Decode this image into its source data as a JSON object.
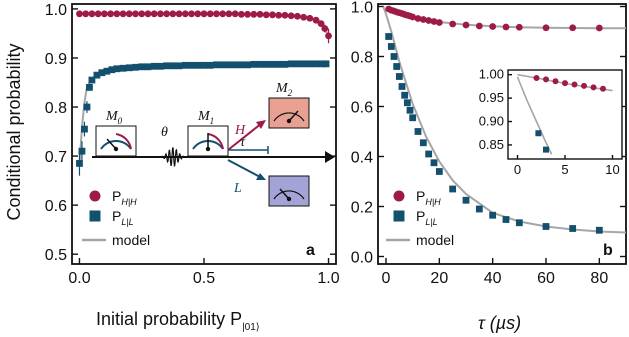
{
  "colors": {
    "red": "#9e1b48",
    "blue": "#13506e",
    "model": "#a6a6a6",
    "axis": "#111111",
    "box_h": "#e7a091",
    "box_l": "#a3a3d8"
  },
  "panel_a": {
    "label": "a",
    "ylabel": "Conditional probability",
    "xlabel_main": "Initial probability P",
    "xlabel_sub": "|01⟩",
    "xticks": [
      "0.0",
      "0.5",
      "1.0"
    ],
    "yticks": [
      "0.5",
      "0.6",
      "0.7",
      "0.8",
      "0.9",
      "1.0"
    ],
    "legend": {
      "red": "P",
      "red_sub": "H|H",
      "blue": "P",
      "blue_sub": "L|L",
      "model": "model"
    },
    "diagram": {
      "m0": "M",
      "m0_sub": "0",
      "m1": "M",
      "m1_sub": "1",
      "m2": "M",
      "m2_sub": "2",
      "theta": "θ",
      "tau": "τ",
      "H": "H",
      "L": "L"
    }
  },
  "panel_b": {
    "label": "b",
    "xlabel": "τ (µs)",
    "xticks": [
      "0",
      "20",
      "40",
      "60",
      "80"
    ],
    "yticks": [
      "0.0",
      "0.2",
      "0.4",
      "0.6",
      "0.8",
      "1.0"
    ],
    "legend": {
      "red": "P",
      "red_sub": "H|H",
      "blue": "P",
      "blue_sub": "L|L",
      "model": "model"
    },
    "inset": {
      "xticks": [
        "0",
        "5",
        "10"
      ],
      "yticks": [
        "1.00",
        "0.95",
        "0.90",
        "0.85"
      ]
    }
  },
  "chart_data": [
    {
      "type": "scatter",
      "panel": "a",
      "xlabel": "Initial probability P|01⟩",
      "ylabel": "Conditional probability",
      "xlim": [
        -0.03,
        1.03
      ],
      "ylim": [
        0.48,
        1.01
      ],
      "series": [
        {
          "name": "P_H|H",
          "color": "#9e1b48",
          "marker": "circle",
          "x": [
            0.0,
            0.025,
            0.05,
            0.075,
            0.1,
            0.125,
            0.15,
            0.175,
            0.2,
            0.225,
            0.25,
            0.275,
            0.3,
            0.325,
            0.35,
            0.375,
            0.4,
            0.425,
            0.45,
            0.475,
            0.5,
            0.525,
            0.55,
            0.575,
            0.6,
            0.625,
            0.65,
            0.675,
            0.7,
            0.725,
            0.75,
            0.775,
            0.8,
            0.825,
            0.85,
            0.875,
            0.9,
            0.925,
            0.95,
            0.97,
            0.985,
            1.0
          ],
          "y": [
            0.99,
            0.99,
            0.99,
            0.99,
            0.99,
            0.99,
            0.99,
            0.99,
            0.99,
            0.99,
            0.99,
            0.99,
            0.99,
            0.99,
            0.99,
            0.99,
            0.99,
            0.99,
            0.99,
            0.99,
            0.99,
            0.99,
            0.99,
            0.99,
            0.99,
            0.99,
            0.989,
            0.989,
            0.989,
            0.989,
            0.988,
            0.988,
            0.987,
            0.987,
            0.986,
            0.985,
            0.983,
            0.981,
            0.977,
            0.97,
            0.96,
            0.945
          ]
        },
        {
          "name": "P_L|L",
          "color": "#13506e",
          "marker": "square",
          "x": [
            0.0,
            0.01,
            0.02,
            0.03,
            0.04,
            0.05,
            0.07,
            0.09,
            0.11,
            0.13,
            0.15,
            0.175,
            0.2,
            0.225,
            0.25,
            0.275,
            0.3,
            0.325,
            0.35,
            0.375,
            0.4,
            0.425,
            0.45,
            0.475,
            0.5,
            0.525,
            0.55,
            0.575,
            0.6,
            0.625,
            0.65,
            0.675,
            0.7,
            0.725,
            0.75,
            0.775,
            0.8,
            0.825,
            0.85,
            0.875,
            0.9,
            0.925,
            0.95,
            0.975,
            0.99
          ],
          "y": [
            0.685,
            0.71,
            0.755,
            0.8,
            0.84,
            0.855,
            0.865,
            0.87,
            0.873,
            0.876,
            0.878,
            0.879,
            0.88,
            0.881,
            0.882,
            0.882,
            0.883,
            0.883,
            0.884,
            0.884,
            0.884,
            0.885,
            0.885,
            0.885,
            0.885,
            0.885,
            0.886,
            0.886,
            0.886,
            0.886,
            0.886,
            0.886,
            0.887,
            0.887,
            0.887,
            0.887,
            0.887,
            0.887,
            0.888,
            0.888,
            0.888,
            0.888,
            0.888,
            0.888,
            0.888
          ]
        }
      ],
      "model": [
        {
          "x": [
            0.0,
            0.2,
            0.4,
            0.6,
            0.8,
            0.9,
            0.95,
            0.98,
            1.0
          ],
          "y": [
            0.99,
            0.99,
            0.99,
            0.99,
            0.988,
            0.985,
            0.978,
            0.965,
            0.945
          ]
        },
        {
          "x": [
            0.0,
            0.005,
            0.01,
            0.02,
            0.03,
            0.05,
            0.08,
            0.12,
            0.2,
            0.4,
            0.6,
            0.8,
            1.0
          ],
          "y": [
            0.68,
            0.72,
            0.76,
            0.81,
            0.84,
            0.858,
            0.868,
            0.874,
            0.879,
            0.884,
            0.886,
            0.887,
            0.888
          ]
        }
      ]
    },
    {
      "type": "scatter",
      "panel": "b",
      "xlabel": "τ (µs)",
      "ylabel": "",
      "xlim": [
        -3,
        90
      ],
      "ylim": [
        -0.03,
        1.01
      ],
      "series": [
        {
          "name": "P_H|H",
          "color": "#9e1b48",
          "marker": "circle",
          "x": [
            1,
            2,
            3,
            4,
            5,
            6,
            7,
            8,
            9,
            10,
            12,
            14,
            16,
            18,
            20,
            25,
            30,
            35,
            40,
            45,
            50,
            60,
            70,
            80
          ],
          "y": [
            0.99,
            0.985,
            0.982,
            0.978,
            0.975,
            0.972,
            0.968,
            0.965,
            0.962,
            0.958,
            0.952,
            0.948,
            0.944,
            0.94,
            0.936,
            0.93,
            0.926,
            0.922,
            0.92,
            0.918,
            0.917,
            0.915,
            0.915,
            0.914
          ]
        },
        {
          "name": "P_L|L",
          "color": "#13506e",
          "marker": "square",
          "x": [
            1,
            2,
            3,
            4,
            5,
            6,
            7,
            8,
            9,
            10,
            12,
            14,
            16,
            18,
            20,
            25,
            30,
            35,
            40,
            45,
            50,
            60,
            70,
            80
          ],
          "y": [
            0.88,
            0.84,
            0.8,
            0.76,
            0.72,
            0.68,
            0.645,
            0.615,
            0.585,
            0.555,
            0.5,
            0.455,
            0.41,
            0.375,
            0.34,
            0.27,
            0.225,
            0.19,
            0.165,
            0.148,
            0.135,
            0.12,
            0.112,
            0.105
          ]
        }
      ],
      "model": [
        {
          "x": [
            0,
            2,
            5,
            10,
            15,
            20,
            30,
            40,
            50,
            60,
            70,
            80,
            90
          ],
          "y": [
            0.995,
            0.986,
            0.975,
            0.96,
            0.948,
            0.938,
            0.927,
            0.921,
            0.917,
            0.915,
            0.914,
            0.913,
            0.913
          ]
        },
        {
          "x": [
            -1,
            0,
            2,
            5,
            10,
            15,
            20,
            25,
            30,
            40,
            50,
            60,
            70,
            80,
            90
          ],
          "y": [
            1.0,
            0.97,
            0.9,
            0.78,
            0.61,
            0.48,
            0.38,
            0.305,
            0.25,
            0.175,
            0.14,
            0.12,
            0.108,
            0.1,
            0.096
          ]
        }
      ]
    },
    {
      "type": "scatter",
      "panel": "b-inset",
      "xlim": [
        -1,
        11
      ],
      "ylim": [
        0.82,
        1.01
      ],
      "series": [
        {
          "name": "P_H|H",
          "color": "#9e1b48",
          "marker": "circle",
          "x": [
            2,
            3,
            4,
            5,
            6,
            7,
            8,
            9
          ],
          "y": [
            0.993,
            0.99,
            0.986,
            0.982,
            0.979,
            0.976,
            0.973,
            0.97
          ]
        },
        {
          "name": "P_L|L",
          "color": "#13506e",
          "marker": "square",
          "x": [
            2.2,
            3
          ],
          "y": [
            0.875,
            0.84
          ]
        }
      ],
      "model": [
        {
          "x": [
            0,
            2,
            4,
            6,
            8,
            10
          ],
          "y": [
            1.0,
            0.993,
            0.985,
            0.978,
            0.972,
            0.966
          ]
        },
        {
          "x": [
            0,
            1,
            2,
            3,
            3.6
          ],
          "y": [
            0.995,
            0.945,
            0.9,
            0.855,
            0.83
          ]
        }
      ]
    }
  ]
}
